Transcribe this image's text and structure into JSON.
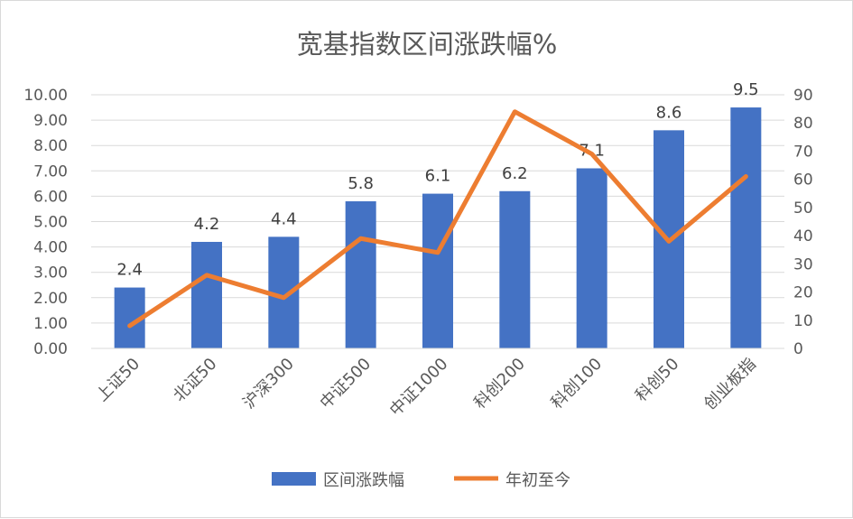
{
  "chart_data": {
    "type": "bar",
    "title": "宽基指数区间涨跌幅%",
    "categories": [
      "上证50",
      "北证50",
      "沪深300",
      "中证500",
      "中证1000",
      "科创200",
      "科创100",
      "科创50",
      "创业板指"
    ],
    "series": [
      {
        "name": "区间涨跌幅",
        "type": "bar",
        "axis": "left",
        "color": "#4472C4",
        "values": [
          2.4,
          4.2,
          4.4,
          5.8,
          6.1,
          6.2,
          7.1,
          8.6,
          9.5
        ],
        "labels": [
          "2.4",
          "4.2",
          "4.4",
          "5.8",
          "6.1",
          "6.2",
          "7.1",
          "8.6",
          "9.5"
        ]
      },
      {
        "name": "年初至今",
        "type": "line",
        "axis": "right",
        "color": "#ED7D31",
        "values": [
          8,
          26,
          18,
          39,
          34,
          84,
          69,
          38,
          61
        ]
      }
    ],
    "y_left": {
      "ylim": [
        0,
        10
      ],
      "ticks": [
        "0.00",
        "1.00",
        "2.00",
        "3.00",
        "4.00",
        "5.00",
        "6.00",
        "7.00",
        "8.00",
        "9.00",
        "10.00"
      ]
    },
    "y_right": {
      "ylim": [
        0,
        90
      ],
      "ticks": [
        "0",
        "10",
        "20",
        "30",
        "40",
        "50",
        "60",
        "70",
        "80",
        "90"
      ]
    },
    "grid": true,
    "legend": "bottom"
  }
}
